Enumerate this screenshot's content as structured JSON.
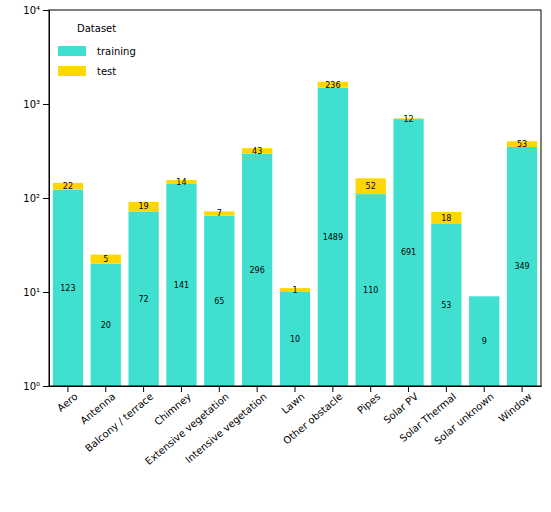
{
  "chart_data": {
    "type": "bar",
    "stacked": true,
    "log": "y",
    "data_labels": true,
    "legend": "upper left",
    "legend_title": "Dataset",
    "categories": [
      "Aero",
      "Antenna",
      "Balcony / terrace",
      "Chimney",
      "Extensive vegetation",
      "Intensive vegetation",
      "Lawn",
      "Other obstacle",
      "Pipes",
      "Solar PV",
      "Solar Thermal",
      "Solar unknown",
      "Window"
    ],
    "series": [
      {
        "name": "training",
        "color": "#40e0d0",
        "values": [
          123,
          20,
          72,
          141,
          65,
          296,
          10,
          1489,
          110,
          691,
          53,
          9,
          349
        ]
      },
      {
        "name": "test",
        "color": "#ffd700",
        "values": [
          22,
          5,
          19,
          14,
          7,
          43,
          1,
          236,
          52,
          12,
          18,
          null,
          53
        ]
      }
    ],
    "ylim": [
      1,
      10000
    ],
    "yticks": [
      {
        "value": 1,
        "label": "10⁰"
      },
      {
        "value": 10,
        "label": "10¹"
      },
      {
        "value": 100,
        "label": "10²"
      },
      {
        "value": 1000,
        "label": "10³"
      },
      {
        "value": 10000,
        "label": "10⁴"
      }
    ]
  }
}
